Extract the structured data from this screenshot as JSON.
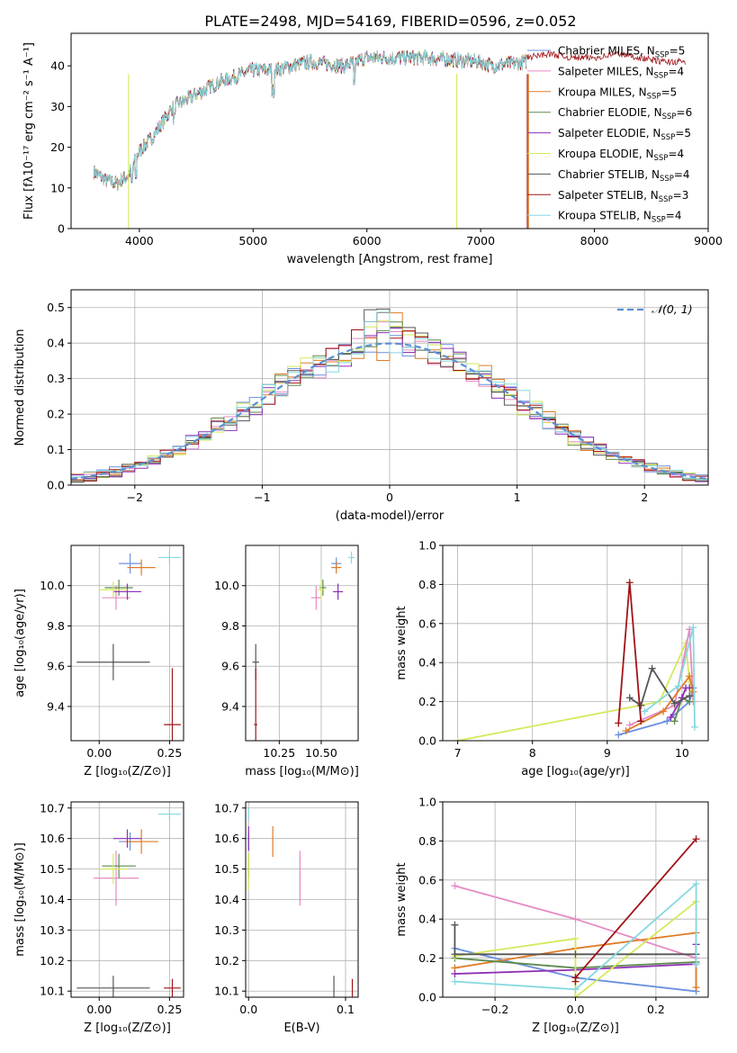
{
  "figure_title": "PLATE=2498, MJD=54169, FIBERID=0596, z=0.052",
  "colors": {
    "Chabrier MILES": "#6a8fe0",
    "Salpeter MILES": "#e58ac3",
    "Kroupa MILES": "#e07b26",
    "Chabrier ELODIE": "#5e8a4e",
    "Salpeter ELODIE": "#8e2fb8",
    "Kroupa ELODIE": "#d4e95c",
    "Chabrier STELIB": "#555555",
    "Salpeter STELIB": "#a01418",
    "Kroupa STELIB": "#86d8df",
    "normal": "#5b8fd6"
  },
  "chart_data": [
    {
      "id": "spectrum",
      "type": "line",
      "title": "",
      "xlabel": "wavelength [Angstrom, rest frame]",
      "ylabel": "Flux [fλ10⁻¹⁷ erg cm⁻² s⁻¹ A⁻¹]",
      "xlim": [
        3400,
        9000
      ],
      "ylim": [
        0,
        48
      ],
      "xticks": [
        4000,
        5000,
        6000,
        7000,
        8000,
        9000
      ],
      "yticks": [
        0,
        10,
        20,
        30,
        40
      ],
      "legend_position": "top-right",
      "continuum": {
        "x": [
          3600,
          3700,
          3800,
          3900,
          4000,
          4100,
          4200,
          4300,
          4500,
          4700,
          5000,
          5200,
          5500,
          5800,
          6000,
          6500,
          7000,
          7100,
          7400
        ],
        "y": [
          14,
          12,
          11,
          13,
          19,
          22,
          26,
          30,
          33,
          36,
          39,
          39,
          41,
          40,
          42,
          42,
          41,
          40,
          41
        ]
      },
      "model_end": {
        "x": [
          7400,
          7600,
          7800,
          8000,
          8200,
          8400,
          8600,
          8800
        ],
        "y": [
          42,
          43,
          42,
          42,
          43,
          42,
          41,
          41
        ]
      },
      "series": [
        {
          "name": "Chabrier MILES, N",
          "sub": "SSP",
          "eq": "=5"
        },
        {
          "name": "Salpeter MILES, N",
          "sub": "SSP",
          "eq": "=4"
        },
        {
          "name": "Kroupa MILES, N",
          "sub": "SSP",
          "eq": "=5"
        },
        {
          "name": "Chabrier ELODIE, N",
          "sub": "SSP",
          "eq": "=6"
        },
        {
          "name": "Salpeter ELODIE, N",
          "sub": "SSP",
          "eq": "=5"
        },
        {
          "name": "Kroupa ELODIE, N",
          "sub": "SSP",
          "eq": "=4"
        },
        {
          "name": "Chabrier STELIB, N",
          "sub": "SSP",
          "eq": "=4"
        },
        {
          "name": "Salpeter STELIB, N",
          "sub": "SSP",
          "eq": "=3"
        },
        {
          "name": "Kroupa STELIB, N",
          "sub": "SSP",
          "eq": "=4"
        }
      ]
    },
    {
      "id": "residuals",
      "type": "bar",
      "title": "",
      "xlabel": "(data-model)/error",
      "ylabel": "Normed distribution",
      "xlim": [
        -2.5,
        2.5
      ],
      "ylim": [
        0,
        0.55
      ],
      "xticks": [
        -2,
        -1,
        0,
        1,
        2
      ],
      "yticks": [
        0.0,
        0.1,
        0.2,
        0.3,
        0.4,
        0.5
      ],
      "grid": true,
      "legend_position": "top-right",
      "legend": "𝒩(0, 1)",
      "bin_width": 0.1,
      "bin_start": -2.5
    },
    {
      "id": "age_vs_Z",
      "type": "scatter",
      "title": "",
      "xlabel": "Z [log₁₀(Z/Z⊙)]",
      "ylabel": "age  [log₁₀(age/yr)]",
      "xlim": [
        -0.1,
        0.3
      ],
      "ylim": [
        9.23,
        10.2
      ],
      "xticks": [
        0.0,
        0.25
      ],
      "yticks": [
        9.4,
        9.6,
        9.8,
        10.0
      ],
      "grid": true,
      "points": [
        {
          "series": "Chabrier MILES",
          "x": 0.11,
          "y": 10.11,
          "xerr": 0.04,
          "yerr": 0.05
        },
        {
          "series": "Salpeter MILES",
          "x": 0.06,
          "y": 9.94,
          "xerr": 0.05,
          "yerr": 0.06
        },
        {
          "series": "Kroupa MILES",
          "x": 0.15,
          "y": 10.09,
          "xerr": 0.05,
          "yerr": 0.04
        },
        {
          "series": "Chabrier ELODIE",
          "x": 0.07,
          "y": 9.99,
          "xerr": 0.05,
          "yerr": 0.04
        },
        {
          "series": "Salpeter ELODIE",
          "x": 0.1,
          "y": 9.97,
          "xerr": 0.05,
          "yerr": 0.04
        },
        {
          "series": "Kroupa ELODIE",
          "x": 0.05,
          "y": 9.98,
          "xerr": 0.05,
          "yerr": 0.04
        },
        {
          "series": "Chabrier STELIB",
          "x": 0.05,
          "y": 9.62,
          "xerr": 0.13,
          "yerr": 0.09
        },
        {
          "series": "Salpeter STELIB",
          "x": 0.26,
          "y": 9.31,
          "xerr": 0.03,
          "yerr": 0.28
        },
        {
          "series": "Kroupa STELIB",
          "x": 0.25,
          "y": 10.14,
          "xerr": 0.04,
          "yerr": 0.03
        }
      ]
    },
    {
      "id": "age_vs_mass",
      "type": "scatter",
      "title": "",
      "xlabel": "mass [log₁₀(M/M⊙)]",
      "ylabel": "",
      "xlim": [
        10.05,
        10.72
      ],
      "ylim": [
        9.23,
        10.2
      ],
      "xticks": [
        10.25,
        10.5
      ],
      "xtick_labels": [
        "10.25",
        "10.50"
      ],
      "yticks": [
        9.4,
        9.6,
        9.8,
        10.0
      ],
      "grid": true,
      "points": [
        {
          "series": "Chabrier MILES",
          "x": 10.59,
          "y": 10.11,
          "xerr": 0.03,
          "yerr": 0.03
        },
        {
          "series": "Salpeter MILES",
          "x": 10.47,
          "y": 9.94,
          "xerr": 0.03,
          "yerr": 0.06
        },
        {
          "series": "Kroupa MILES",
          "x": 10.59,
          "y": 10.09,
          "xerr": 0.03,
          "yerr": 0.03
        },
        {
          "series": "Chabrier ELODIE",
          "x": 10.51,
          "y": 9.99,
          "xerr": 0.02,
          "yerr": 0.04
        },
        {
          "series": "Salpeter ELODIE",
          "x": 10.6,
          "y": 9.97,
          "xerr": 0.03,
          "yerr": 0.04
        },
        {
          "series": "Kroupa ELODIE",
          "x": 10.5,
          "y": 9.98,
          "xerr": 0.02,
          "yerr": 0.05
        },
        {
          "series": "Chabrier STELIB",
          "x": 10.11,
          "y": 9.62,
          "xerr": 0.02,
          "yerr": 0.09
        },
        {
          "series": "Salpeter STELIB",
          "x": 10.11,
          "y": 9.31,
          "xerr": 0.01,
          "yerr": 0.28
        },
        {
          "series": "Kroupa STELIB",
          "x": 10.68,
          "y": 10.14,
          "xerr": 0.02,
          "yerr": 0.03
        }
      ]
    },
    {
      "id": "weight_vs_age",
      "type": "line",
      "title": "",
      "xlabel": "age  [log₁₀(age/yr)]",
      "ylabel": "mass weight",
      "xlim": [
        6.8,
        10.35
      ],
      "ylim": [
        0,
        1.0
      ],
      "xticks": [
        7,
        8,
        9,
        10
      ],
      "yticks": [
        0.0,
        0.2,
        0.4,
        0.6,
        0.8,
        1.0
      ],
      "grid": true,
      "series": [
        {
          "name": "Kroupa ELODIE",
          "x": [
            7.0,
            9.7,
            10.05,
            10.1,
            10.15
          ],
          "y": [
            0.0,
            0.2,
            0.5,
            0.3,
            0.2
          ]
        },
        {
          "name": "Salpeter MILES",
          "x": [
            9.3,
            9.9,
            10.1,
            10.15
          ],
          "y": [
            0.08,
            0.18,
            0.57,
            0.2
          ]
        },
        {
          "name": "Chabrier MILES",
          "x": [
            9.15,
            9.8,
            10.1,
            10.15
          ],
          "y": [
            0.03,
            0.1,
            0.2,
            0.27
          ]
        },
        {
          "name": "Kroupa MILES",
          "x": [
            9.25,
            9.75,
            10.1,
            10.15
          ],
          "y": [
            0.05,
            0.15,
            0.33,
            0.25
          ]
        },
        {
          "name": "Chabrier ELODIE",
          "x": [
            9.9,
            10.0,
            10.1
          ],
          "y": [
            0.1,
            0.22,
            0.2
          ]
        },
        {
          "name": "Salpeter ELODIE",
          "x": [
            9.85,
            10.0,
            10.05,
            10.1
          ],
          "y": [
            0.12,
            0.22,
            0.27,
            0.27
          ]
        },
        {
          "name": "Chabrier STELIB",
          "x": [
            9.3,
            9.45,
            9.6,
            9.9,
            10.1
          ],
          "y": [
            0.22,
            0.18,
            0.37,
            0.19,
            0.23
          ]
        },
        {
          "name": "Salpeter STELIB",
          "x": [
            9.15,
            9.3,
            9.45
          ],
          "y": [
            0.09,
            0.81,
            0.1
          ]
        },
        {
          "name": "Kroupa STELIB",
          "x": [
            9.5,
            9.95,
            10.15,
            10.17
          ],
          "y": [
            0.15,
            0.28,
            0.58,
            0.07
          ]
        }
      ]
    },
    {
      "id": "mass_vs_Z",
      "type": "scatter",
      "title": "",
      "xlabel": "Z [log₁₀(Z/Z⊙)]",
      "ylabel": "mass [log₁₀(M/M⊙)]",
      "xlim": [
        -0.1,
        0.3
      ],
      "ylim": [
        10.08,
        10.72
      ],
      "xticks": [
        0.0,
        0.25
      ],
      "yticks": [
        10.1,
        10.2,
        10.3,
        10.4,
        10.5,
        10.6,
        10.7
      ],
      "grid": true,
      "points": [
        {
          "series": "Chabrier MILES",
          "x": 0.11,
          "y": 10.59,
          "xerr": 0.04,
          "yerr": 0.03
        },
        {
          "series": "Salpeter MILES",
          "x": 0.06,
          "y": 10.47,
          "xerr": 0.08,
          "yerr": 0.09
        },
        {
          "series": "Kroupa MILES",
          "x": 0.15,
          "y": 10.59,
          "xerr": 0.06,
          "yerr": 0.04
        },
        {
          "series": "Chabrier ELODIE",
          "x": 0.07,
          "y": 10.51,
          "xerr": 0.06,
          "yerr": 0.04
        },
        {
          "series": "Salpeter ELODIE",
          "x": 0.1,
          "y": 10.6,
          "xerr": 0.05,
          "yerr": 0.03
        },
        {
          "series": "Kroupa ELODIE",
          "x": 0.05,
          "y": 10.5,
          "xerr": 0.05,
          "yerr": 0.05
        },
        {
          "series": "Chabrier STELIB",
          "x": 0.05,
          "y": 10.11,
          "xerr": 0.13,
          "yerr": 0.04
        },
        {
          "series": "Salpeter STELIB",
          "x": 0.26,
          "y": 10.11,
          "xerr": 0.03,
          "yerr": 0.03
        },
        {
          "series": "Kroupa STELIB",
          "x": 0.25,
          "y": 10.68,
          "xerr": 0.04,
          "yerr": 0.02
        }
      ]
    },
    {
      "id": "mass_vs_ebv",
      "type": "scatter",
      "title": "",
      "xlabel": "E(B-V)",
      "ylabel": "",
      "xlim": [
        -0.003,
        0.113
      ],
      "ylim": [
        10.08,
        10.72
      ],
      "xticks": [
        0.0,
        0.1
      ],
      "yticks": [
        10.1,
        10.2,
        10.3,
        10.4,
        10.5,
        10.6,
        10.7
      ],
      "grid": true,
      "points": [
        {
          "series": "Chabrier MILES",
          "x": 0.0,
          "y": 10.59,
          "xerr": 0,
          "yerr": 0.03
        },
        {
          "series": "Salpeter MILES",
          "x": 0.053,
          "y": 10.47,
          "xerr": 0,
          "yerr": 0.09
        },
        {
          "series": "Kroupa MILES",
          "x": 0.025,
          "y": 10.59,
          "xerr": 0,
          "yerr": 0.05
        },
        {
          "series": "Chabrier ELODIE",
          "x": 0.0,
          "y": 10.51,
          "xerr": 0,
          "yerr": 0.04
        },
        {
          "series": "Salpeter ELODIE",
          "x": 0.0,
          "y": 10.6,
          "xerr": 0,
          "yerr": 0.04
        },
        {
          "series": "Kroupa ELODIE",
          "x": 0.0,
          "y": 10.49,
          "xerr": 0,
          "yerr": 0.06
        },
        {
          "series": "Chabrier STELIB",
          "x": 0.088,
          "y": 10.11,
          "xerr": 0,
          "yerr": 0.04
        },
        {
          "series": "Salpeter STELIB",
          "x": 0.107,
          "y": 10.11,
          "xerr": 0,
          "yerr": 0.03
        },
        {
          "series": "Kroupa STELIB",
          "x": 0.0,
          "y": 10.68,
          "xerr": 0,
          "yerr": 0.02
        }
      ]
    },
    {
      "id": "weight_vs_Z",
      "type": "line",
      "title": "",
      "xlabel": "Z [log₁₀(Z/Z⊙)]",
      "ylabel": "mass weight",
      "xlim": [
        -0.33,
        0.33
      ],
      "ylim": [
        0,
        1.0
      ],
      "xticks": [
        -0.2,
        0.0,
        0.2
      ],
      "yticks": [
        0.0,
        0.2,
        0.4,
        0.6,
        0.8,
        1.0
      ],
      "grid": true,
      "series": [
        {
          "name": "Salpeter MILES",
          "x": [
            -0.3,
            0.0,
            0.3
          ],
          "y": [
            0.57,
            0.4,
            0.2
          ]
        },
        {
          "name": "Chabrier MILES",
          "x": [
            -0.3,
            0.0,
            0.3,
            0.3
          ],
          "y": [
            0.25,
            0.1,
            0.03,
            0.27
          ]
        },
        {
          "name": "Kroupa MILES",
          "x": [
            -0.3,
            0.0,
            0.3,
            0.3
          ],
          "y": [
            0.15,
            0.25,
            0.33,
            0.05
          ]
        },
        {
          "name": "Chabrier ELODIE",
          "x": [
            -0.3,
            0.0,
            0.3
          ],
          "y": [
            0.2,
            0.15,
            0.18
          ]
        },
        {
          "name": "Salpeter ELODIE",
          "x": [
            -0.3,
            0.0,
            0.3,
            0.3
          ],
          "y": [
            0.12,
            0.14,
            0.17,
            0.27
          ]
        },
        {
          "name": "Kroupa ELODIE",
          "x": [
            -0.3,
            0.0,
            0.0,
            0.3
          ],
          "y": [
            0.21,
            0.3,
            0.0,
            0.49
          ]
        },
        {
          "name": "Chabrier STELIB",
          "x": [
            -0.3,
            -0.3,
            0.0,
            0.3
          ],
          "y": [
            0.37,
            0.22,
            0.22,
            0.22
          ]
        },
        {
          "name": "Salpeter STELIB",
          "x": [
            0.0,
            0.0,
            0.3
          ],
          "y": [
            0.08,
            0.1,
            0.81
          ]
        },
        {
          "name": "Kroupa STELIB",
          "x": [
            -0.3,
            0.0,
            0.3,
            0.3
          ],
          "y": [
            0.08,
            0.04,
            0.58,
            0.17
          ]
        }
      ]
    }
  ]
}
